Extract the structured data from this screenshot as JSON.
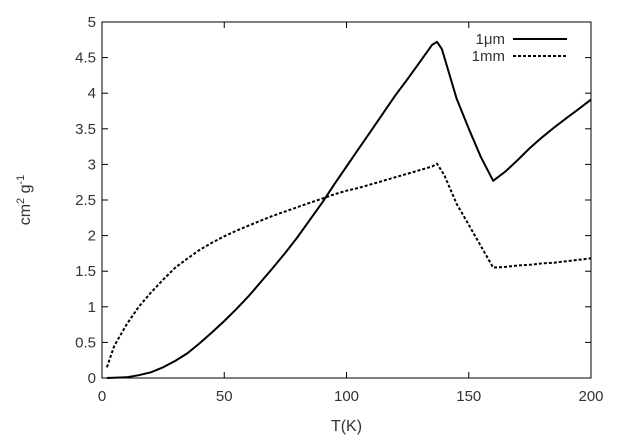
{
  "chart_data": {
    "type": "line",
    "xlabel": "T(K)",
    "ylabel": {
      "base1": "cm",
      "exp1": "2",
      "base2": " g",
      "exp2": "-1"
    },
    "xlim": [
      0,
      200
    ],
    "ylim": [
      0,
      5
    ],
    "xticks": [
      0,
      50,
      100,
      150,
      200
    ],
    "yticks": [
      0,
      0.5,
      1,
      1.5,
      2,
      2.5,
      3,
      3.5,
      4,
      4.5,
      5
    ],
    "grid": false,
    "legend_position": "top-right",
    "series": [
      {
        "name": "1μm",
        "style": "solid",
        "color": "#000000",
        "points": [
          [
            2,
            0
          ],
          [
            10,
            0.01
          ],
          [
            15,
            0.04
          ],
          [
            20,
            0.08
          ],
          [
            25,
            0.15
          ],
          [
            30,
            0.24
          ],
          [
            35,
            0.35
          ],
          [
            40,
            0.49
          ],
          [
            45,
            0.64
          ],
          [
            50,
            0.8
          ],
          [
            55,
            0.97
          ],
          [
            60,
            1.15
          ],
          [
            65,
            1.35
          ],
          [
            70,
            1.55
          ],
          [
            75,
            1.76
          ],
          [
            80,
            1.98
          ],
          [
            85,
            2.22
          ],
          [
            90,
            2.46
          ],
          [
            95,
            2.72
          ],
          [
            100,
            2.97
          ],
          [
            105,
            3.22
          ],
          [
            110,
            3.47
          ],
          [
            115,
            3.72
          ],
          [
            120,
            3.97
          ],
          [
            125,
            4.2
          ],
          [
            130,
            4.44
          ],
          [
            135,
            4.68
          ],
          [
            137,
            4.72
          ],
          [
            139,
            4.62
          ],
          [
            145,
            3.93
          ],
          [
            150,
            3.5
          ],
          [
            155,
            3.1
          ],
          [
            160,
            2.77
          ],
          [
            165,
            2.9
          ],
          [
            170,
            3.06
          ],
          [
            175,
            3.23
          ],
          [
            180,
            3.38
          ],
          [
            185,
            3.52
          ],
          [
            190,
            3.65
          ],
          [
            195,
            3.78
          ],
          [
            200,
            3.91
          ]
        ]
      },
      {
        "name": "1mm",
        "style": "dashed",
        "color": "#000000",
        "points": [
          [
            2,
            0.15
          ],
          [
            5,
            0.45
          ],
          [
            10,
            0.75
          ],
          [
            15,
            1.0
          ],
          [
            20,
            1.2
          ],
          [
            25,
            1.38
          ],
          [
            30,
            1.55
          ],
          [
            35,
            1.68
          ],
          [
            40,
            1.8
          ],
          [
            45,
            1.9
          ],
          [
            50,
            1.99
          ],
          [
            55,
            2.07
          ],
          [
            60,
            2.14
          ],
          [
            65,
            2.21
          ],
          [
            70,
            2.28
          ],
          [
            75,
            2.34
          ],
          [
            80,
            2.4
          ],
          [
            85,
            2.46
          ],
          [
            90,
            2.52
          ],
          [
            95,
            2.58
          ],
          [
            100,
            2.63
          ],
          [
            105,
            2.67
          ],
          [
            110,
            2.72
          ],
          [
            115,
            2.77
          ],
          [
            120,
            2.82
          ],
          [
            125,
            2.87
          ],
          [
            130,
            2.92
          ],
          [
            135,
            2.97
          ],
          [
            137,
            3.01
          ],
          [
            140,
            2.85
          ],
          [
            145,
            2.45
          ],
          [
            150,
            2.15
          ],
          [
            155,
            1.85
          ],
          [
            160,
            1.55
          ],
          [
            165,
            1.56
          ],
          [
            170,
            1.58
          ],
          [
            175,
            1.59
          ],
          [
            180,
            1.61
          ],
          [
            185,
            1.62
          ],
          [
            190,
            1.64
          ],
          [
            195,
            1.66
          ],
          [
            200,
            1.68
          ]
        ]
      }
    ]
  }
}
